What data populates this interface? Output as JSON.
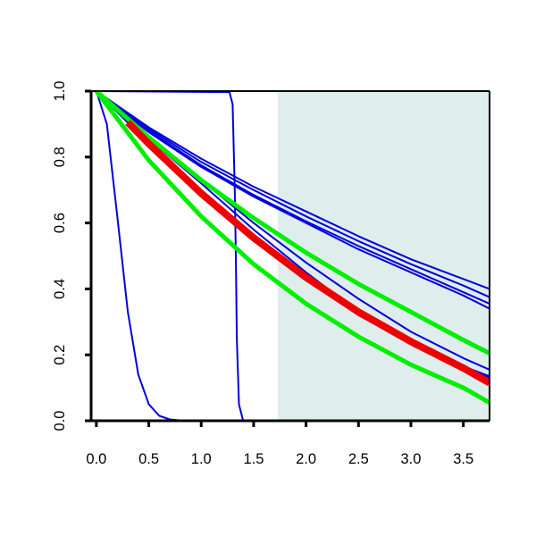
{
  "chart_data": {
    "type": "line",
    "title": "",
    "xlabel": "",
    "ylabel": "",
    "xlim": [
      -0.05,
      3.75
    ],
    "ylim": [
      0.0,
      1.0
    ],
    "x_ticks": [
      "0.0",
      "0.5",
      "1.0",
      "1.5",
      "2.0",
      "2.5",
      "3.0",
      "3.5"
    ],
    "y_ticks": [
      "0.0",
      "0.2",
      "0.4",
      "0.6",
      "0.8",
      "1.0"
    ],
    "grid": false,
    "legend": "none",
    "shaded_region": {
      "x_from": 1.73,
      "x_to": 3.75,
      "color": "#e0eded"
    },
    "series": [
      {
        "color": "#0000dd",
        "width": 2,
        "points": [
          [
            0,
            1.0
          ],
          [
            0.1,
            0.9
          ],
          [
            0.2,
            0.62
          ],
          [
            0.3,
            0.33
          ],
          [
            0.4,
            0.14
          ],
          [
            0.5,
            0.05
          ],
          [
            0.6,
            0.015
          ],
          [
            0.7,
            0.004
          ],
          [
            0.8,
            0.001
          ],
          [
            1.0,
            0.0
          ],
          [
            3.75,
            0.0
          ]
        ]
      },
      {
        "color": "#0000dd",
        "width": 2,
        "points": [
          [
            0,
            1.0
          ],
          [
            1.27,
            0.997
          ],
          [
            1.3,
            0.96
          ],
          [
            1.32,
            0.7
          ],
          [
            1.33,
            0.5
          ],
          [
            1.34,
            0.25
          ],
          [
            1.36,
            0.05
          ],
          [
            1.4,
            0.0
          ],
          [
            3.75,
            0.0
          ]
        ]
      },
      {
        "color": "#0000dd",
        "width": 2,
        "points": [
          [
            0,
            1.0
          ],
          [
            0.5,
            0.875
          ],
          [
            1.0,
            0.77
          ],
          [
            1.5,
            0.68
          ],
          [
            2.0,
            0.6
          ],
          [
            2.5,
            0.52
          ],
          [
            3.0,
            0.45
          ],
          [
            3.5,
            0.38
          ],
          [
            3.75,
            0.34
          ]
        ]
      },
      {
        "color": "#0000dd",
        "width": 2,
        "points": [
          [
            0,
            1.0
          ],
          [
            0.5,
            0.88
          ],
          [
            1.0,
            0.775
          ],
          [
            1.5,
            0.685
          ],
          [
            2.0,
            0.605
          ],
          [
            2.5,
            0.53
          ],
          [
            3.0,
            0.46
          ],
          [
            3.5,
            0.39
          ],
          [
            3.75,
            0.355
          ]
        ]
      },
      {
        "color": "#0000dd",
        "width": 2,
        "points": [
          [
            0,
            1.0
          ],
          [
            0.5,
            0.885
          ],
          [
            1.0,
            0.785
          ],
          [
            1.5,
            0.7
          ],
          [
            2.0,
            0.62
          ],
          [
            2.5,
            0.545
          ],
          [
            3.0,
            0.475
          ],
          [
            3.5,
            0.41
          ],
          [
            3.75,
            0.375
          ]
        ]
      },
      {
        "color": "#0000dd",
        "width": 2,
        "points": [
          [
            0,
            1.0
          ],
          [
            0.5,
            0.89
          ],
          [
            1.0,
            0.795
          ],
          [
            1.5,
            0.71
          ],
          [
            2.0,
            0.635
          ],
          [
            2.5,
            0.56
          ],
          [
            3.0,
            0.49
          ],
          [
            3.5,
            0.43
          ],
          [
            3.75,
            0.4
          ]
        ]
      },
      {
        "color": "#0000dd",
        "width": 2,
        "points": [
          [
            0,
            1.0
          ],
          [
            0.5,
            0.86
          ],
          [
            1.0,
            0.73
          ],
          [
            1.5,
            0.6
          ],
          [
            2.0,
            0.48
          ],
          [
            2.5,
            0.37
          ],
          [
            3.0,
            0.27
          ],
          [
            3.5,
            0.19
          ],
          [
            3.75,
            0.155
          ]
        ]
      },
      {
        "color": "#0000dd",
        "width": 2,
        "points": [
          [
            0,
            1.0
          ],
          [
            0.5,
            0.855
          ],
          [
            1.0,
            0.72
          ],
          [
            1.5,
            0.58
          ],
          [
            2.0,
            0.45
          ],
          [
            2.5,
            0.33
          ],
          [
            3.0,
            0.235
          ],
          [
            3.5,
            0.16
          ],
          [
            3.75,
            0.125
          ]
        ]
      },
      {
        "color": "#0000dd",
        "width": 2,
        "points": [
          [
            0,
            1.0
          ],
          [
            0.5,
            0.845
          ],
          [
            1.0,
            0.7
          ],
          [
            1.5,
            0.565
          ],
          [
            2.0,
            0.44
          ],
          [
            2.5,
            0.33
          ],
          [
            3.0,
            0.24
          ],
          [
            3.5,
            0.165
          ],
          [
            3.75,
            0.135
          ]
        ]
      },
      {
        "color": "#0000dd",
        "width": 2,
        "points": [
          [
            0,
            1.0
          ],
          [
            0.5,
            0.84
          ],
          [
            1.0,
            0.69
          ],
          [
            1.5,
            0.555
          ],
          [
            2.0,
            0.43
          ],
          [
            2.5,
            0.32
          ],
          [
            3.0,
            0.235
          ],
          [
            3.5,
            0.16
          ],
          [
            3.75,
            0.13
          ]
        ]
      },
      {
        "color": "#00ee00",
        "width": 5,
        "points": [
          [
            0,
            1.0
          ],
          [
            0.5,
            0.86
          ],
          [
            1.0,
            0.73
          ],
          [
            1.5,
            0.615
          ],
          [
            2.0,
            0.51
          ],
          [
            2.5,
            0.415
          ],
          [
            3.0,
            0.33
          ],
          [
            3.5,
            0.245
          ],
          [
            3.75,
            0.205
          ]
        ]
      },
      {
        "color": "#00ee00",
        "width": 5,
        "points": [
          [
            0,
            1.0
          ],
          [
            0.5,
            0.79
          ],
          [
            1.0,
            0.62
          ],
          [
            1.5,
            0.475
          ],
          [
            2.0,
            0.355
          ],
          [
            2.5,
            0.255
          ],
          [
            3.0,
            0.17
          ],
          [
            3.5,
            0.1
          ],
          [
            3.75,
            0.055
          ]
        ]
      },
      {
        "color": "#ee0000",
        "width": 8,
        "points": [
          [
            0.3,
            0.905
          ],
          [
            0.5,
            0.84
          ],
          [
            1.0,
            0.69
          ],
          [
            1.5,
            0.555
          ],
          [
            2.0,
            0.435
          ],
          [
            2.5,
            0.33
          ],
          [
            3.0,
            0.24
          ],
          [
            3.5,
            0.16
          ],
          [
            3.75,
            0.115
          ]
        ]
      }
    ]
  }
}
